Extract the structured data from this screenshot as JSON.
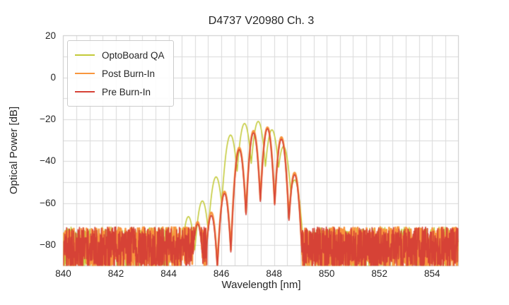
{
  "chart_data": {
    "type": "line",
    "title": "D4737 V20980 Ch. 3",
    "xlabel": "Wavelength [nm]",
    "ylabel": "Optical Power [dB]",
    "xlim": [
      840,
      855
    ],
    "ylim": [
      -90,
      20
    ],
    "xticks": [
      840,
      842,
      844,
      846,
      848,
      850,
      852,
      854
    ],
    "yticks": [
      20,
      0,
      -20,
      -40,
      -60,
      -80
    ],
    "grid": {
      "x_step_nm": 0.5,
      "y_step_db": 10,
      "grid_color": "#d9d9d9",
      "spine_color": "#c9c9c9",
      "grid_on": true
    },
    "legend_position": "upper left",
    "description": "Multimode laser optical spectra: comb of longitudinal modes around 847.5 nm rising out of a noise floor near -75 dB",
    "noise_floor": {
      "top_db": -71.5,
      "bottom_db": -90
    },
    "series": [
      {
        "name": "OptoBoard QA",
        "color": "#c3ca39",
        "line_width": 1.6,
        "seed": 101,
        "noise_left_end_nm": 845.02,
        "noise_right_start_nm": 848.93,
        "mode_halfwidth_nm": 0.2625,
        "valley_drop_db": 20,
        "modes_nm_db": [
          [
            844.75,
            -66.5
          ],
          [
            845.28,
            -59.0
          ],
          [
            845.8,
            -47.5
          ],
          [
            846.35,
            -27.5
          ],
          [
            846.88,
            -22.0
          ],
          [
            847.4,
            -21.0
          ],
          [
            847.92,
            -25.0
          ],
          [
            848.36,
            -33.0
          ],
          [
            848.78,
            -49.0
          ]
        ]
      },
      {
        "name": "Post Burn-In",
        "color": "#f8963e",
        "line_width": 2.6,
        "seed": 202,
        "noise_left_end_nm": 845.35,
        "noise_right_start_nm": 849.0,
        "mode_halfwidth_nm": 0.265,
        "valley_drop_db": 34,
        "modes_nm_db": [
          [
            845.1,
            -69.0
          ],
          [
            845.62,
            -64.5
          ],
          [
            846.12,
            -54.5
          ],
          [
            846.68,
            -33.5
          ],
          [
            847.22,
            -25.5
          ],
          [
            847.75,
            -23.8
          ],
          [
            848.28,
            -28.5
          ],
          [
            848.78,
            -45.5
          ]
        ]
      },
      {
        "name": "Pre Burn-In",
        "color": "#d64236",
        "line_width": 1.7,
        "seed": 303,
        "noise_left_end_nm": 845.42,
        "noise_right_start_nm": 849.05,
        "mode_halfwidth_nm": 0.265,
        "valley_drop_db": 34,
        "modes_nm_db": [
          [
            845.1,
            -70.0
          ],
          [
            845.62,
            -66.0
          ],
          [
            846.12,
            -55.5
          ],
          [
            846.68,
            -34.5
          ],
          [
            847.22,
            -26.5
          ],
          [
            847.75,
            -24.5
          ],
          [
            848.28,
            -29.5
          ],
          [
            848.78,
            -46.5
          ]
        ],
        "dropouts_nm": [
          845.45
        ]
      }
    ]
  }
}
